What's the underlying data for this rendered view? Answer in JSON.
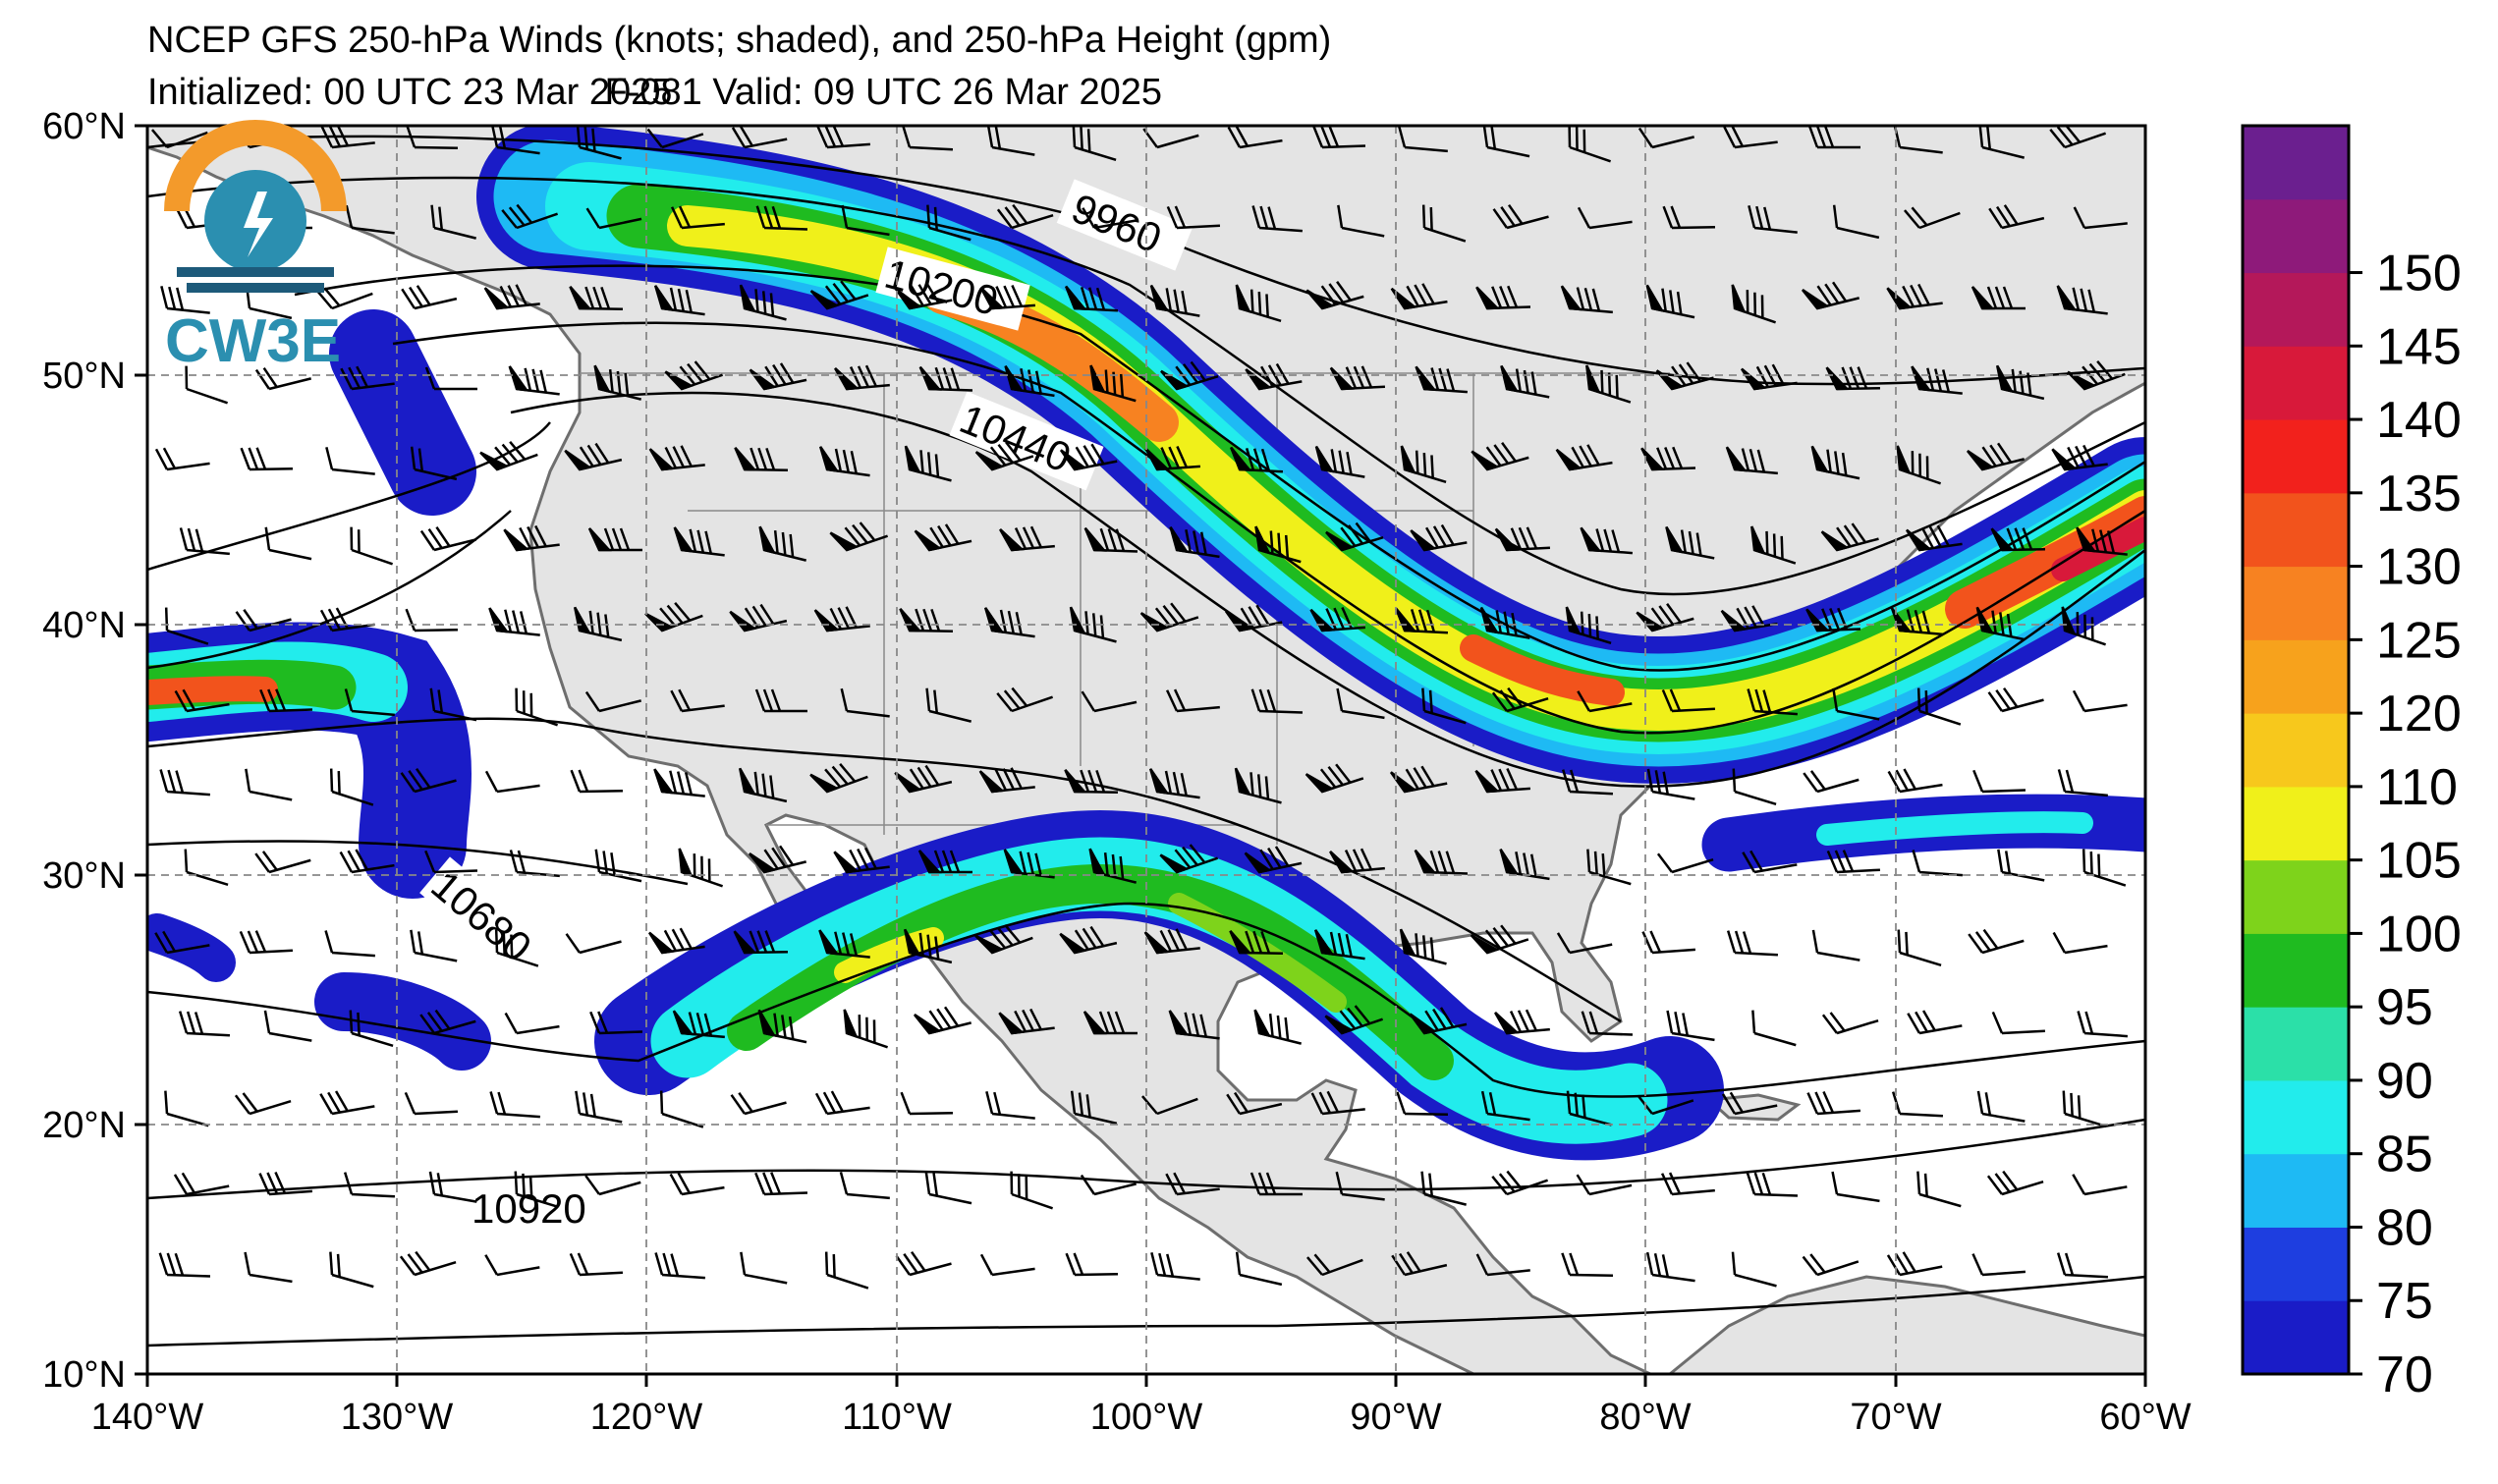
{
  "header": {
    "title": "NCEP GFS 250-hPa Winds (knots; shaded), and 250-hPa Height (gpm)",
    "initialized": "Initialized: 00 UTC 23 Mar 2025",
    "valid": "F-081  Valid: 09 UTC 26 Mar 2025"
  },
  "logo": {
    "text": "CW3E",
    "colors": {
      "orange": "#F39A2B",
      "teal": "#2B8FB0",
      "navy": "#1D5A7A"
    }
  },
  "map": {
    "lon_range": [
      -140,
      -60
    ],
    "lat_range": [
      10,
      60
    ],
    "lon_ticks": [
      "140°W",
      "130°W",
      "120°W",
      "110°W",
      "100°W",
      "90°W",
      "80°W",
      "70°W",
      "60°W"
    ],
    "lat_ticks": [
      "10°N",
      "20°N",
      "30°N",
      "40°N",
      "50°N",
      "60°N"
    ],
    "land_color": "#e4e4e4",
    "border_color": "#6e6e6e"
  },
  "height_contours": {
    "labels": [
      "9960",
      "10200",
      "10440",
      "10680",
      "10920"
    ]
  },
  "colorbar": {
    "labels": [
      "70",
      "75",
      "80",
      "85",
      "90",
      "95",
      "100",
      "105",
      "110",
      "120",
      "125",
      "130",
      "135",
      "140",
      "145",
      "150"
    ],
    "colors": [
      "#1a1cc7",
      "#1e3ee0",
      "#1ebaf4",
      "#22ecec",
      "#2be0a8",
      "#1fbb20",
      "#7ed31b",
      "#f0f01a",
      "#f7c81c",
      "#f7a21c",
      "#f78221",
      "#f2531c",
      "#f2211c",
      "#d8193a",
      "#b4185a",
      "#8e1a7a",
      "#6b1f8f"
    ]
  }
}
